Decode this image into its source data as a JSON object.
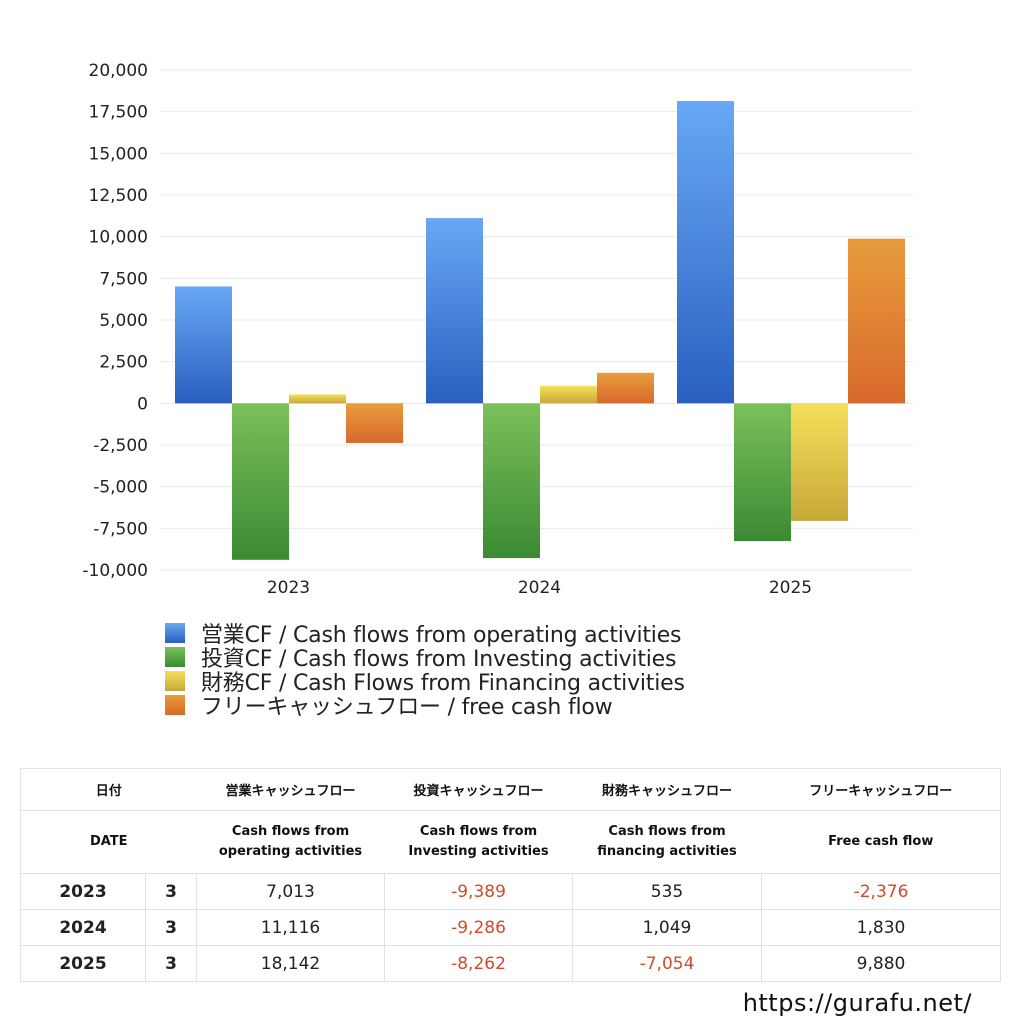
{
  "chart_data": {
    "type": "bar",
    "categories": [
      "2023",
      "2024",
      "2025"
    ],
    "series": [
      {
        "name": "営業CF / Cash flows from operating activities",
        "values": [
          7013,
          11116,
          18142
        ],
        "colors": [
          "#68a8f4",
          "#2a5fc0"
        ]
      },
      {
        "name": "投資CF / Cash flows from Investing activities",
        "values": [
          -9389,
          -9286,
          -8262
        ],
        "colors": [
          "#7cc05a",
          "#3a8a33"
        ]
      },
      {
        "name": "財務CF / Cash Flows from Financing activities",
        "values": [
          535,
          1049,
          -7054
        ],
        "colors": [
          "#f5e05a",
          "#c7a83a"
        ]
      },
      {
        "name": "フリーキャッシュフロー / free cash flow",
        "values": [
          -2376,
          1830,
          9880
        ],
        "colors": [
          "#e89c3c",
          "#d8692c"
        ]
      }
    ],
    "ylim": [
      -10000,
      20000
    ],
    "yticks": [
      20000,
      17500,
      15000,
      12500,
      10000,
      7500,
      5000,
      2500,
      0,
      -2500,
      -5000,
      -7500,
      -10000
    ],
    "ytick_labels": [
      "20,000",
      "17,500",
      "15,000",
      "12,500",
      "10,000",
      "7,500",
      "5,000",
      "2,500",
      "0",
      "-2,500",
      "-5,000",
      "-7,500",
      "-10,000"
    ],
    "grid": true,
    "legend": "bottom",
    "title": "",
    "xlabel": "",
    "ylabel": ""
  },
  "table": {
    "header1": [
      "日付",
      "",
      "営業キャッシュフロー",
      "投資キャッシュフロー",
      "財務キャッシュフロー",
      "フリーキャッシュフロー"
    ],
    "header2": [
      [
        "DATE"
      ],
      [
        ""
      ],
      [
        "Cash flows from",
        "operating activities"
      ],
      [
        "Cash flows from",
        "Investing activities"
      ],
      [
        "Cash flows from",
        "financing activities"
      ],
      [
        "Free cash flow"
      ]
    ],
    "rows": [
      {
        "year": "2023",
        "month": "3",
        "op": "7,013",
        "inv": "-9,389",
        "fin": "535",
        "free": "-2,376"
      },
      {
        "year": "2024",
        "month": "3",
        "op": "11,116",
        "inv": "-9,286",
        "fin": "1,049",
        "free": "1,830"
      },
      {
        "year": "2025",
        "month": "3",
        "op": "18,142",
        "inv": "-8,262",
        "fin": "-7,054",
        "free": "9,880"
      }
    ],
    "negative_color": "#d24a2a"
  },
  "footer": {
    "site": "https://gurafu.net/"
  }
}
